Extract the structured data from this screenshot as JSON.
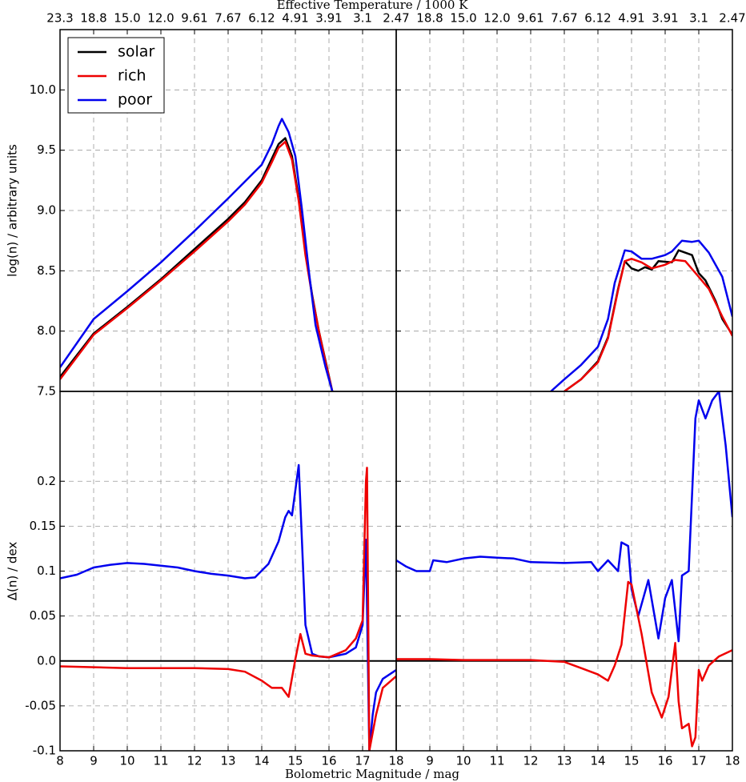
{
  "figure": {
    "top_axis_label": "Effective Temperature / 1000 K",
    "x_label": "Bolometric Magnitude / mag"
  },
  "chart_data": [
    {
      "type": "line",
      "ylabel": "log(n) / arbitrary units",
      "legend": "upper left",
      "grid": true,
      "xlim": [
        8,
        18
      ],
      "ylim": [
        7.5,
        10.5
      ],
      "x2ticks": [
        {
          "value": 8,
          "label": "23.3"
        },
        {
          "value": 9,
          "label": "18.8"
        },
        {
          "value": 10,
          "label": "15.0"
        },
        {
          "value": 11,
          "label": "12.0"
        },
        {
          "value": 12,
          "label": "9.61"
        },
        {
          "value": 13,
          "label": "7.67"
        },
        {
          "value": 14,
          "label": "6.12"
        },
        {
          "value": 15,
          "label": "4.91"
        },
        {
          "value": 16,
          "label": "3.91"
        },
        {
          "value": 17,
          "label": "3.1"
        },
        {
          "value": 18,
          "label": "2.47"
        }
      ],
      "yticks": [
        7.5,
        {
          "value": 8,
          "label": "8.0"
        },
        8.5,
        {
          "value": 9,
          "label": "9.0"
        },
        9.5,
        {
          "value": 10,
          "label": "10.0"
        }
      ],
      "series": [
        {
          "name": "solar",
          "color": "#000000",
          "x": [
            8,
            9,
            10,
            11,
            12,
            13,
            13.5,
            14,
            14.3,
            14.5,
            14.7,
            14.9,
            15.1,
            15.3,
            15.5,
            15.7,
            15.9,
            16.1
          ],
          "values": [
            7.62,
            7.98,
            8.2,
            8.43,
            8.68,
            8.93,
            9.07,
            9.25,
            9.43,
            9.55,
            9.6,
            9.45,
            9.1,
            8.65,
            8.3,
            8.0,
            7.75,
            7.5
          ]
        },
        {
          "name": "rich",
          "color": "#ee0000",
          "x": [
            8,
            9,
            10,
            11,
            12,
            13,
            13.5,
            14,
            14.3,
            14.5,
            14.7,
            14.9,
            15.1,
            15.3,
            15.5,
            15.7,
            15.9,
            16.1
          ],
          "values": [
            7.6,
            7.97,
            8.19,
            8.42,
            8.66,
            8.91,
            9.05,
            9.23,
            9.4,
            9.52,
            9.57,
            9.42,
            9.08,
            8.63,
            8.29,
            8.0,
            7.74,
            7.5
          ]
        },
        {
          "name": "poor",
          "color": "#0000ee",
          "x": [
            8,
            9,
            10,
            11,
            12,
            13,
            14,
            14.3,
            14.5,
            14.6,
            14.8,
            15,
            15.2,
            15.4,
            15.6,
            15.9,
            16.1
          ],
          "values": [
            7.7,
            8.1,
            8.33,
            8.57,
            8.83,
            9.1,
            9.38,
            9.55,
            9.7,
            9.76,
            9.65,
            9.45,
            9.0,
            8.5,
            8.05,
            7.7,
            7.5
          ]
        }
      ]
    },
    {
      "type": "line",
      "grid": true,
      "xlim": [
        8,
        18
      ],
      "ylim": [
        7.5,
        10.5
      ],
      "x2ticks": [
        {
          "value": 9,
          "label": "18.8"
        },
        {
          "value": 10,
          "label": "15.0"
        },
        {
          "value": 11,
          "label": "12.0"
        },
        {
          "value": 12,
          "label": "9.61"
        },
        {
          "value": 13,
          "label": "7.67"
        },
        {
          "value": 14,
          "label": "6.12"
        },
        {
          "value": 15,
          "label": "4.91"
        },
        {
          "value": 16,
          "label": "3.91"
        },
        {
          "value": 17,
          "label": "3.1"
        },
        {
          "value": 18,
          "label": "2.47"
        }
      ],
      "yticks": [
        7.5,
        8,
        8.5,
        9,
        9.5,
        10
      ],
      "series": [
        {
          "color": "#000000",
          "x": [
            13,
            13.5,
            14,
            14.3,
            14.6,
            14.8,
            15,
            15.2,
            15.4,
            15.6,
            15.8,
            16.2,
            16.4,
            16.8,
            17,
            17.2,
            17.5,
            17.7,
            18
          ],
          "values": [
            7.5,
            7.6,
            7.75,
            7.95,
            8.35,
            8.58,
            8.52,
            8.5,
            8.53,
            8.51,
            8.58,
            8.57,
            8.67,
            8.63,
            8.48,
            8.42,
            8.25,
            8.1,
            7.97
          ]
        },
        {
          "color": "#ee0000",
          "x": [
            13,
            13.5,
            14,
            14.3,
            14.6,
            14.8,
            15,
            15.3,
            15.6,
            16,
            16.3,
            16.6,
            17,
            17.3,
            17.7,
            18
          ],
          "values": [
            7.5,
            7.6,
            7.74,
            7.94,
            8.34,
            8.58,
            8.6,
            8.57,
            8.52,
            8.55,
            8.59,
            8.58,
            8.45,
            8.35,
            8.12,
            7.96
          ]
        },
        {
          "color": "#0000ee",
          "x": [
            12.6,
            13,
            13.5,
            14,
            14.3,
            14.5,
            14.8,
            15,
            15.3,
            15.6,
            16,
            16.2,
            16.5,
            16.8,
            17,
            17.3,
            17.7,
            18
          ],
          "values": [
            7.5,
            7.6,
            7.72,
            7.87,
            8.1,
            8.4,
            8.67,
            8.66,
            8.6,
            8.6,
            8.63,
            8.66,
            8.75,
            8.74,
            8.75,
            8.65,
            8.45,
            8.12
          ]
        }
      ]
    },
    {
      "type": "line",
      "ylabel": "Δ(n) / dex",
      "grid": true,
      "hline": 0,
      "xlim": [
        8,
        18
      ],
      "ylim": [
        -0.1,
        0.3
      ],
      "xticks": [
        8,
        9,
        10,
        11,
        12,
        13,
        14,
        15,
        16,
        17,
        18
      ],
      "yticks": [
        -0.1,
        -0.05,
        {
          "value": 0,
          "label": "0.0"
        },
        0.05,
        0.1,
        0.15,
        0.2
      ],
      "series": [
        {
          "color": "#0000ee",
          "x": [
            8,
            8.5,
            9,
            9.5,
            10,
            10.5,
            11,
            11.5,
            12,
            12.5,
            13,
            13.5,
            13.8,
            14.2,
            14.5,
            14.7,
            14.8,
            14.9,
            15,
            15.1,
            15.2,
            15.3,
            15.5,
            15.7,
            16,
            16.5,
            16.8,
            17,
            17.1,
            17.2,
            17.3,
            17.4,
            17.6,
            18
          ],
          "values": [
            0.092,
            0.096,
            0.104,
            0.107,
            0.109,
            0.108,
            0.106,
            0.104,
            0.1,
            0.097,
            0.095,
            0.092,
            0.093,
            0.108,
            0.133,
            0.16,
            0.167,
            0.162,
            0.19,
            0.218,
            0.13,
            0.04,
            0.008,
            0.005,
            0.004,
            0.008,
            0.015,
            0.04,
            0.135,
            -0.1,
            -0.06,
            -0.035,
            -0.02,
            -0.01
          ]
        },
        {
          "color": "#ee0000",
          "x": [
            8,
            10,
            12,
            13,
            13.5,
            14,
            14.3,
            14.6,
            14.8,
            15,
            15.15,
            15.3,
            15.5,
            16,
            16.5,
            16.8,
            17,
            17.1,
            17.13,
            17.2,
            17.4,
            17.6,
            18
          ],
          "values": [
            -0.006,
            -0.008,
            -0.008,
            -0.009,
            -0.012,
            -0.022,
            -0.03,
            -0.03,
            -0.04,
            0.002,
            0.03,
            0.008,
            0.006,
            0.004,
            0.012,
            0.025,
            0.045,
            0.2,
            0.215,
            -0.1,
            -0.06,
            -0.03,
            -0.017
          ]
        }
      ]
    },
    {
      "type": "line",
      "grid": true,
      "hline": 0,
      "xlim": [
        8,
        18
      ],
      "ylim": [
        -0.1,
        0.3
      ],
      "xticks": [
        9,
        10,
        11,
        12,
        13,
        14,
        15,
        16,
        17,
        18
      ],
      "yticks": [
        -0.1,
        -0.05,
        0,
        0.05,
        0.1,
        0.15,
        0.2
      ],
      "series": [
        {
          "color": "#0000ee",
          "x": [
            8,
            8.3,
            8.6,
            9,
            9.1,
            9.5,
            10,
            10.5,
            11,
            11.5,
            12,
            13,
            13.8,
            14,
            14.3,
            14.6,
            14.7,
            14.9,
            15,
            15.2,
            15.5,
            15.8,
            16,
            16.2,
            16.4,
            16.5,
            16.7,
            16.9,
            17,
            17.2,
            17.4,
            17.6,
            17.8,
            18
          ],
          "values": [
            0.112,
            0.105,
            0.1,
            0.1,
            0.112,
            0.11,
            0.114,
            0.116,
            0.115,
            0.114,
            0.11,
            0.109,
            0.11,
            0.1,
            0.112,
            0.1,
            0.132,
            0.128,
            0.08,
            0.05,
            0.09,
            0.025,
            0.07,
            0.09,
            0.022,
            0.095,
            0.1,
            0.27,
            0.29,
            0.27,
            0.29,
            0.3,
            0.24,
            0.16
          ]
        },
        {
          "color": "#ee0000",
          "x": [
            8,
            9,
            10,
            12,
            13,
            13.5,
            14,
            14.3,
            14.5,
            14.7,
            14.9,
            15,
            15.3,
            15.6,
            15.9,
            16.1,
            16.3,
            16.4,
            16.5,
            16.7,
            16.8,
            16.9,
            17,
            17.1,
            17.3,
            17.6,
            18
          ],
          "values": [
            0.002,
            0.002,
            0.001,
            0.001,
            -0.001,
            -0.008,
            -0.015,
            -0.022,
            -0.005,
            0.018,
            0.088,
            0.085,
            0.03,
            -0.035,
            -0.063,
            -0.04,
            0.02,
            -0.045,
            -0.075,
            -0.07,
            -0.095,
            -0.085,
            -0.01,
            -0.022,
            -0.005,
            0.005,
            0.012
          ]
        }
      ]
    }
  ]
}
